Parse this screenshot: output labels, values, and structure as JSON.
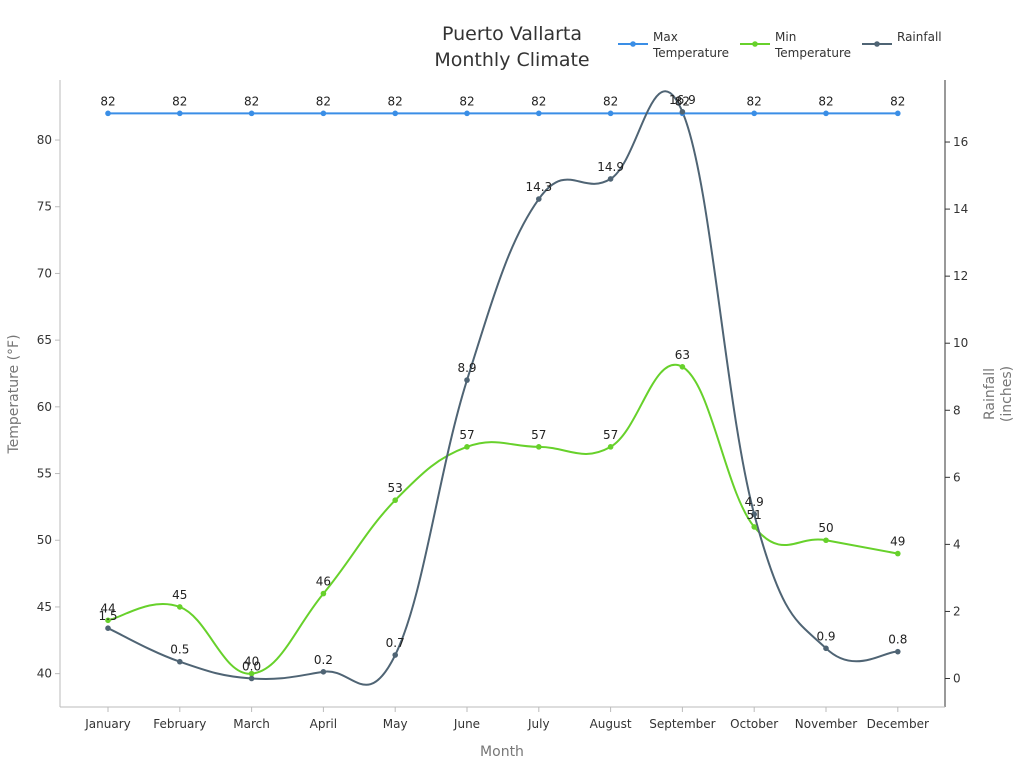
{
  "chart_data": {
    "type": "line",
    "title": [
      "Puerto Vallarta",
      "Monthly Climate"
    ],
    "xlabel": "Month",
    "ylabel_left": "Temperature (°F)",
    "ylabel_right": [
      "Rainfall",
      "(inches)"
    ],
    "categories": [
      "January",
      "February",
      "March",
      "April",
      "May",
      "June",
      "July",
      "August",
      "September",
      "October",
      "November",
      "December"
    ],
    "y_left_range": [
      37.5,
      84.5
    ],
    "y_left_ticks": [
      40,
      45,
      50,
      55,
      60,
      65,
      70,
      75,
      80
    ],
    "y_right_range": [
      -0.85,
      17.85
    ],
    "y_right_ticks": [
      0,
      2,
      4,
      6,
      8,
      10,
      12,
      14,
      16
    ],
    "legend_position": "top-right",
    "grid": false,
    "series": [
      {
        "name": [
          "Max",
          "Temperature"
        ],
        "axis": "left",
        "color": "#3a8ee6",
        "values": [
          82,
          82,
          82,
          82,
          82,
          82,
          82,
          82,
          82,
          82,
          82,
          82
        ],
        "labels": [
          "82",
          "82",
          "82",
          "82",
          "82",
          "82",
          "82",
          "82",
          "82",
          "82",
          "82",
          "82"
        ]
      },
      {
        "name": [
          "Min",
          "Temperature"
        ],
        "axis": "left",
        "color": "#67d12b",
        "values": [
          44,
          45,
          40,
          46,
          53,
          57,
          57,
          57,
          63,
          51,
          50,
          49
        ],
        "labels": [
          "44",
          "45",
          "40",
          "46",
          "53",
          "57",
          "57",
          "57",
          "63",
          "51",
          "50",
          "49"
        ]
      },
      {
        "name": [
          "Rainfall"
        ],
        "axis": "right",
        "color": "#4f6474",
        "values": [
          1.5,
          0.5,
          0.0,
          0.2,
          0.7,
          8.9,
          14.3,
          14.9,
          16.9,
          4.9,
          0.9,
          0.8
        ],
        "labels": [
          "1.5",
          "0.5",
          "0.0",
          "0.2",
          "0.7",
          "8.9",
          "14.3",
          "14.9",
          "16.9",
          "4.9",
          "0.9",
          "0.8"
        ]
      }
    ]
  }
}
